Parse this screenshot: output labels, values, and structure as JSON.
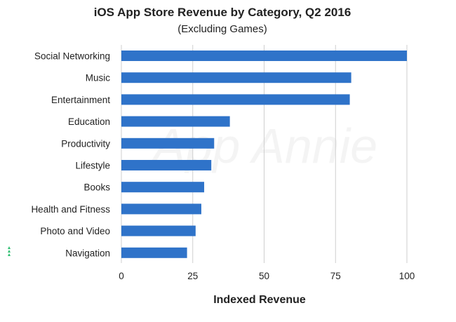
{
  "chart_data": {
    "type": "bar",
    "orientation": "horizontal",
    "title": "iOS App Store Revenue by Category, Q2 2016",
    "subtitle": "(Excluding Games)",
    "xlabel": "Indexed Revenue",
    "ylabel": "",
    "categories": [
      "Social Networking",
      "Music",
      "Entertainment",
      "Education",
      "Productivity",
      "Lifestyle",
      "Books",
      "Health and Fitness",
      "Photo and Video",
      "Navigation"
    ],
    "values": [
      100,
      80.5,
      80,
      38,
      32.5,
      31.5,
      29,
      28,
      26,
      23
    ],
    "xlim": [
      0,
      100
    ],
    "xticks": [
      0,
      25,
      50,
      75,
      100
    ],
    "xtick_labels": [
      "0",
      "25",
      "50",
      "75",
      "100"
    ],
    "grid": "vertical",
    "legend": "none"
  },
  "colors": {
    "bar": "#2f73c9",
    "grid": "#cfcfcf",
    "logo": "#2fbf71"
  },
  "watermark_text": "App Annie",
  "logo_icon": "app-annie-logo-icon"
}
